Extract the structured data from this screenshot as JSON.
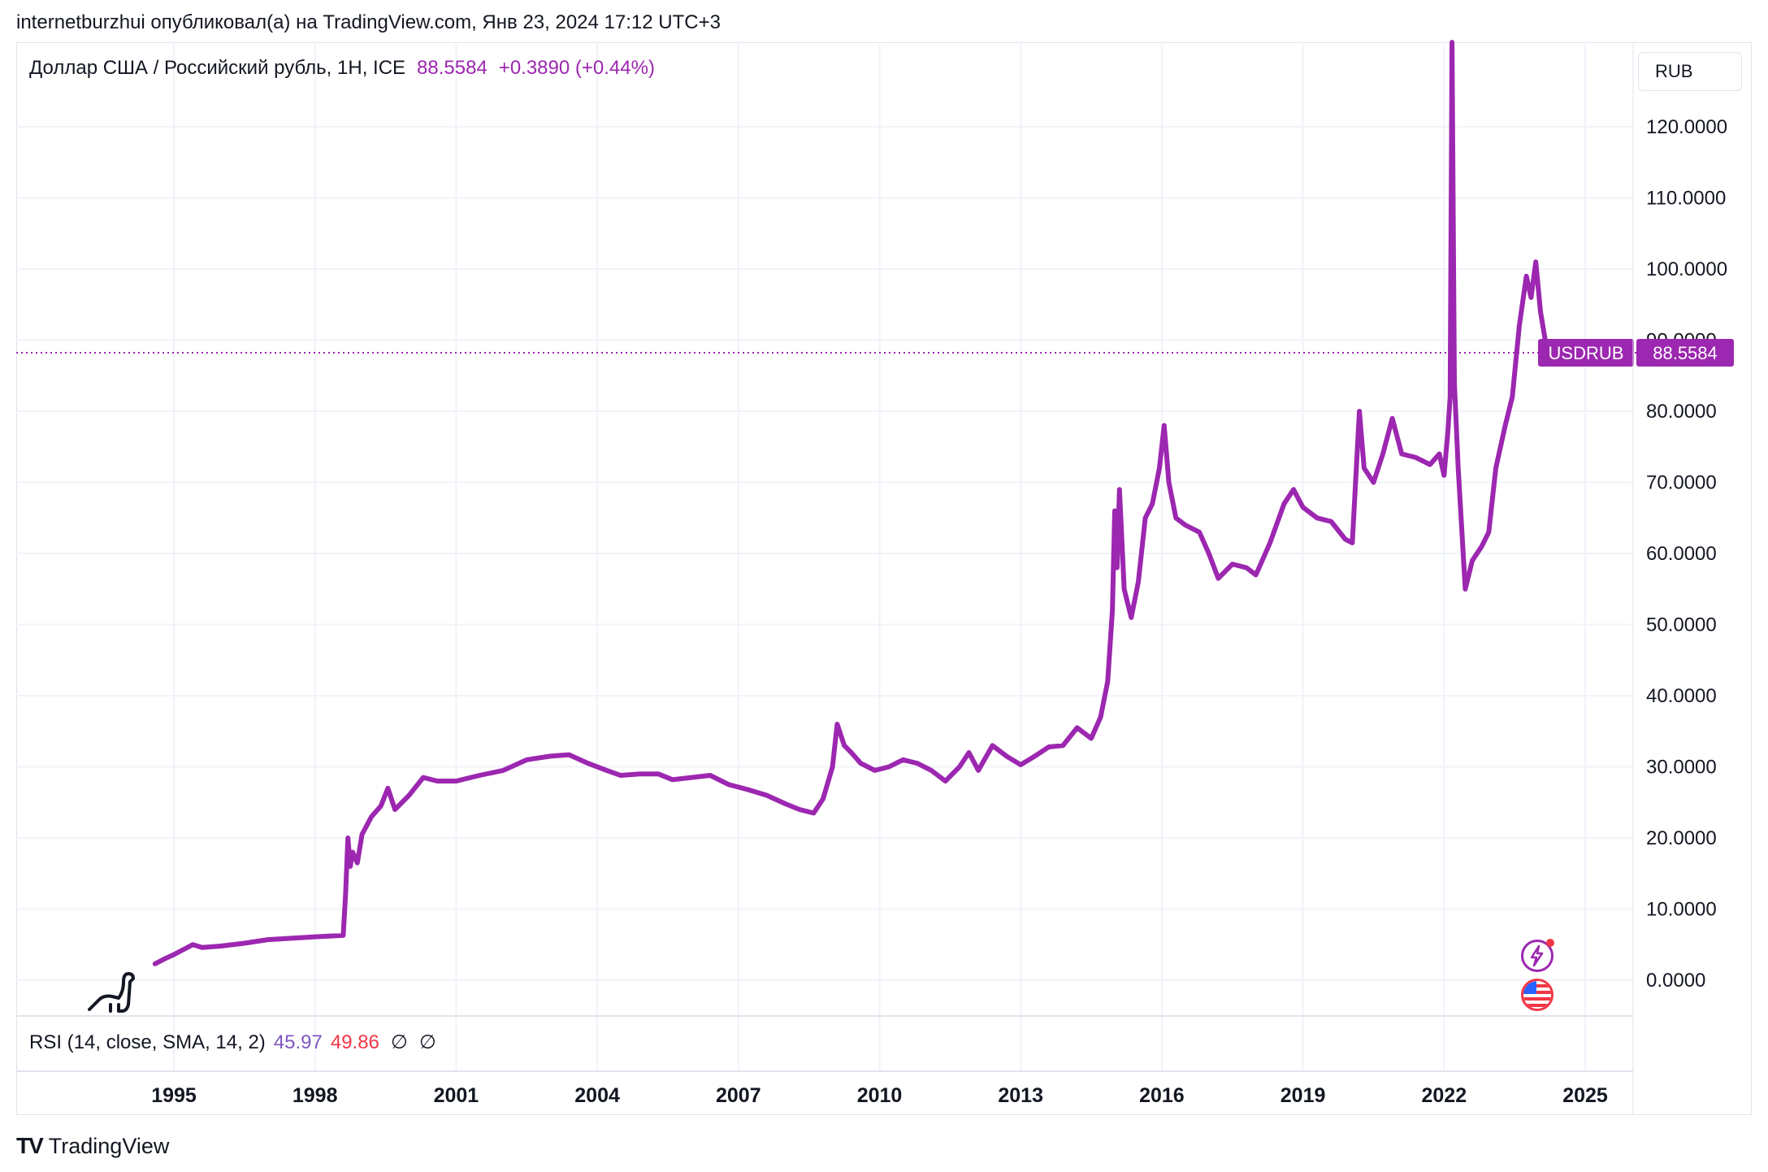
{
  "header": {
    "publisher": "internetburzhui опубликовал(а) на TradingView.com, Янв 23, 2024 17:12 UTC+3"
  },
  "legend": {
    "symbol": "Доллар США / Российский рубль, 1Н, ICE",
    "last": "88.5584",
    "change": "+0.3890 (+0.44%)"
  },
  "currency_button": "RUB",
  "price_label": {
    "name": "USDRUB",
    "value": "88.5584"
  },
  "rsi": {
    "label": "RSI (14, close, SMA, 14, 2)",
    "value1": "45.97",
    "value2": "49.86",
    "na1": "∅",
    "na2": "∅"
  },
  "footer": {
    "logo": "TV",
    "brand": "TradingView"
  },
  "colors": {
    "line": "#9c27b0",
    "grid": "#f0f3fa",
    "rsi1": "#7e57c2",
    "rsi2": "#f23645"
  },
  "icons": [
    "dino-icon",
    "lightning-icon",
    "us-flag-icon"
  ],
  "chart_data": {
    "type": "line",
    "title": "",
    "xlabel": "",
    "ylabel": "",
    "x_ticks": [
      "1995",
      "1998",
      "2001",
      "2004",
      "2007",
      "2010",
      "2013",
      "2016",
      "2019",
      "2022",
      "2025"
    ],
    "y_ticks": [
      "0.0000",
      "10.0000",
      "20.0000",
      "30.0000",
      "40.0000",
      "50.0000",
      "60.0000",
      "70.0000",
      "80.0000",
      "90.0000",
      "100.0000",
      "110.0000",
      "120.0000"
    ],
    "xlim": [
      1991.4,
      2026.4
    ],
    "ylim": [
      -5,
      132
    ],
    "grid": true,
    "series": [
      {
        "name": "USDRUB",
        "points": [
          [
            1994.6,
            2.3
          ],
          [
            1994.8,
            3.0
          ],
          [
            1995.0,
            3.6
          ],
          [
            1995.2,
            4.3
          ],
          [
            1995.4,
            5.0
          ],
          [
            1995.6,
            4.6
          ],
          [
            1996.0,
            4.8
          ],
          [
            1996.5,
            5.2
          ],
          [
            1997.0,
            5.7
          ],
          [
            1997.5,
            5.9
          ],
          [
            1998.0,
            6.1
          ],
          [
            1998.6,
            6.3
          ],
          [
            1998.65,
            12.0
          ],
          [
            1998.7,
            20.0
          ],
          [
            1998.75,
            16.0
          ],
          [
            1998.8,
            18.0
          ],
          [
            1998.9,
            16.5
          ],
          [
            1999.0,
            20.5
          ],
          [
            1999.2,
            23.0
          ],
          [
            1999.4,
            24.5
          ],
          [
            1999.55,
            27.0
          ],
          [
            1999.7,
            24.0
          ],
          [
            2000.0,
            26.0
          ],
          [
            2000.3,
            28.5
          ],
          [
            2000.6,
            28.0
          ],
          [
            2001.0,
            28.0
          ],
          [
            2001.5,
            28.8
          ],
          [
            2002.0,
            29.5
          ],
          [
            2002.5,
            31.0
          ],
          [
            2003.0,
            31.5
          ],
          [
            2003.4,
            31.7
          ],
          [
            2003.8,
            30.5
          ],
          [
            2004.2,
            29.5
          ],
          [
            2004.5,
            28.8
          ],
          [
            2004.9,
            29.0
          ],
          [
            2005.3,
            29.0
          ],
          [
            2005.6,
            28.2
          ],
          [
            2006.0,
            28.5
          ],
          [
            2006.4,
            28.8
          ],
          [
            2006.8,
            27.5
          ],
          [
            2007.2,
            26.8
          ],
          [
            2007.6,
            26.0
          ],
          [
            2008.0,
            24.8
          ],
          [
            2008.3,
            24.0
          ],
          [
            2008.6,
            23.5
          ],
          [
            2008.8,
            25.5
          ],
          [
            2009.0,
            30.0
          ],
          [
            2009.1,
            36.0
          ],
          [
            2009.25,
            33.0
          ],
          [
            2009.4,
            32.0
          ],
          [
            2009.6,
            30.5
          ],
          [
            2009.9,
            29.5
          ],
          [
            2010.2,
            30.0
          ],
          [
            2010.5,
            31.0
          ],
          [
            2010.8,
            30.5
          ],
          [
            2011.1,
            29.5
          ],
          [
            2011.4,
            28.0
          ],
          [
            2011.7,
            30.0
          ],
          [
            2011.9,
            32.0
          ],
          [
            2012.1,
            29.5
          ],
          [
            2012.4,
            33.0
          ],
          [
            2012.7,
            31.5
          ],
          [
            2013.0,
            30.3
          ],
          [
            2013.3,
            31.5
          ],
          [
            2013.6,
            32.8
          ],
          [
            2013.9,
            33.0
          ],
          [
            2014.2,
            35.5
          ],
          [
            2014.5,
            34.0
          ],
          [
            2014.7,
            37.0
          ],
          [
            2014.85,
            42.0
          ],
          [
            2014.95,
            52.0
          ],
          [
            2015.0,
            66.0
          ],
          [
            2015.05,
            58.0
          ],
          [
            2015.1,
            69.0
          ],
          [
            2015.2,
            55.0
          ],
          [
            2015.35,
            51.0
          ],
          [
            2015.5,
            56.0
          ],
          [
            2015.65,
            65.0
          ],
          [
            2015.8,
            67.0
          ],
          [
            2015.95,
            72.0
          ],
          [
            2016.05,
            78.0
          ],
          [
            2016.15,
            70.0
          ],
          [
            2016.3,
            65.0
          ],
          [
            2016.5,
            64.0
          ],
          [
            2016.8,
            63.0
          ],
          [
            2017.0,
            60.0
          ],
          [
            2017.2,
            56.5
          ],
          [
            2017.5,
            58.5
          ],
          [
            2017.8,
            58.0
          ],
          [
            2018.0,
            57.0
          ],
          [
            2018.3,
            61.5
          ],
          [
            2018.6,
            67.0
          ],
          [
            2018.8,
            69.0
          ],
          [
            2019.0,
            66.5
          ],
          [
            2019.3,
            65.0
          ],
          [
            2019.6,
            64.5
          ],
          [
            2019.9,
            62.0
          ],
          [
            2020.05,
            61.5
          ],
          [
            2020.2,
            80.0
          ],
          [
            2020.3,
            72.0
          ],
          [
            2020.5,
            70.0
          ],
          [
            2020.7,
            74.0
          ],
          [
            2020.9,
            79.0
          ],
          [
            2021.1,
            74.0
          ],
          [
            2021.4,
            73.5
          ],
          [
            2021.7,
            72.5
          ],
          [
            2021.9,
            74.0
          ],
          [
            2022.0,
            71.0
          ],
          [
            2022.08,
            77.0
          ],
          [
            2022.13,
            82.0
          ],
          [
            2022.17,
            132.0
          ],
          [
            2022.22,
            84.0
          ],
          [
            2022.3,
            72.0
          ],
          [
            2022.45,
            55.0
          ],
          [
            2022.6,
            59.0
          ],
          [
            2022.8,
            61.0
          ],
          [
            2022.95,
            63.0
          ],
          [
            2023.1,
            72.0
          ],
          [
            2023.3,
            78.0
          ],
          [
            2023.45,
            82.0
          ],
          [
            2023.6,
            92.0
          ],
          [
            2023.75,
            99.0
          ],
          [
            2023.85,
            96.0
          ],
          [
            2023.95,
            101.0
          ],
          [
            2024.05,
            94.0
          ],
          [
            2024.15,
            90.0
          ],
          [
            2024.3,
            88.5584
          ]
        ]
      }
    ]
  }
}
